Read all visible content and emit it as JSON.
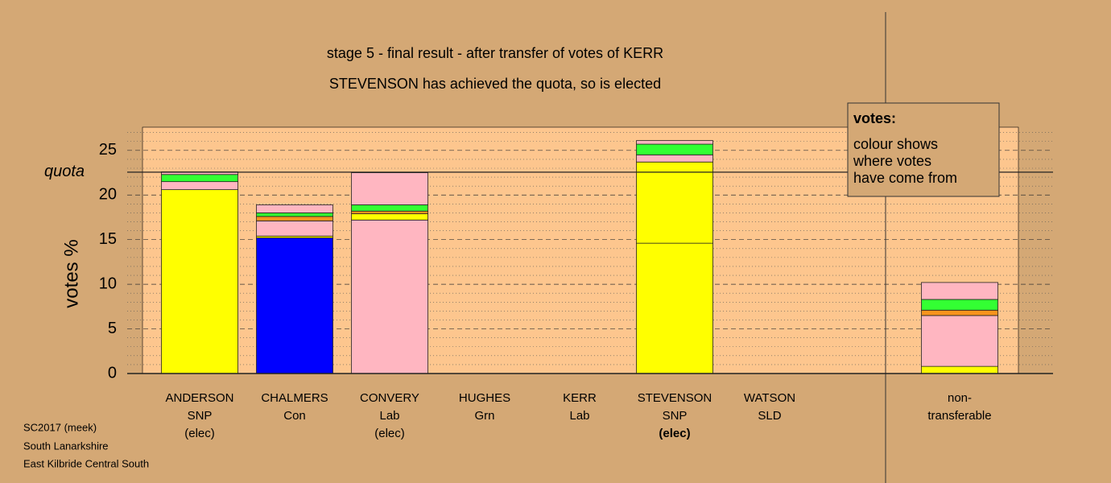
{
  "chart_data": {
    "type": "stacked-bar",
    "title": "stage 5 - final result - after transfer of votes of KERR",
    "subtitle": "STEVENSON has achieved the quota, so is elected",
    "ylabel": "votes %",
    "categories": [
      [
        "ANDERSON",
        "SNP",
        "(elec)"
      ],
      [
        "CHALMERS",
        "Con"
      ],
      [
        "CONVERY",
        "Lab",
        "(elec)"
      ],
      [
        "HUGHES",
        "Grn"
      ],
      [
        "KERR",
        "Lab"
      ],
      [
        "STEVENSON",
        "SNP",
        "(elec)"
      ],
      [
        "WATSON",
        "SLD"
      ],
      null,
      [
        "non-",
        "transferable"
      ]
    ],
    "highlight_category": 5,
    "series": [
      {
        "color": "#ffff00",
        "values": [
          20.6,
          0,
          0,
          0,
          0,
          14.6,
          0,
          null,
          0
        ]
      },
      {
        "color": "#0000ff",
        "values": [
          0,
          15.2,
          0,
          0,
          0,
          0,
          0,
          null,
          0
        ]
      },
      {
        "color": "#ffb6c1",
        "values": [
          0,
          0,
          17.2,
          0,
          0,
          0,
          0,
          null,
          0
        ]
      },
      {
        "color": "#ffff00",
        "values": [
          0,
          0.2,
          0.7,
          0,
          0,
          9.1,
          0,
          null,
          0.8
        ]
      },
      {
        "color": "#ffb6c1",
        "values": [
          0.9,
          1.7,
          0,
          0,
          0,
          0.8,
          0,
          null,
          5.7
        ]
      },
      {
        "color": "#f7941d",
        "values": [
          0,
          0.5,
          0.3,
          0,
          0,
          0,
          0,
          null,
          0.6
        ]
      },
      {
        "color": "#33ff33",
        "values": [
          0.8,
          0.4,
          0.7,
          0,
          0,
          1.2,
          0,
          null,
          1.2
        ]
      },
      {
        "color": "#ffb6c1",
        "values": [
          0.3,
          0.9,
          3.6,
          0,
          0,
          0.4,
          0,
          null,
          1.9
        ]
      }
    ],
    "ylim": [
      0,
      27.6
    ],
    "yticks": [
      0,
      5,
      10,
      15,
      20,
      25
    ],
    "grid": true,
    "quota": 22.56,
    "quota_label": "quota",
    "note_title": "votes:",
    "note_lines": [
      "colour shows",
      "where votes",
      "have come from"
    ],
    "footer": [
      "SC2017 (meek)",
      "South Lanarkshire",
      "East Kilbride Central South"
    ]
  }
}
